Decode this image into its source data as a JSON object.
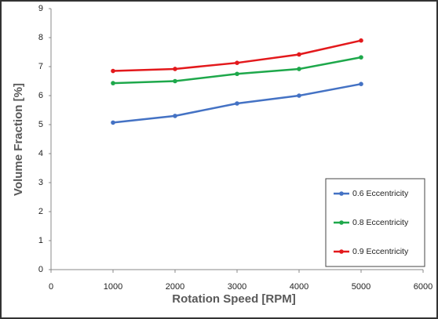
{
  "chart_data": {
    "type": "line",
    "x_label": "Rotation Speed [RPM]",
    "y_label": "Volume Fraction [%]",
    "x": [
      1000,
      2000,
      3000,
      4000,
      5000
    ],
    "series": [
      {
        "name": "0.6 Eccentricity",
        "color": "#4472c4",
        "values": [
          5.07,
          5.3,
          5.73,
          6.0,
          6.4
        ]
      },
      {
        "name": "0.8 Eccentricity",
        "color": "#1ea84b",
        "values": [
          6.43,
          6.5,
          6.75,
          6.92,
          7.32
        ]
      },
      {
        "name": "0.9 Eccentricity",
        "color": "#e3191c",
        "values": [
          6.85,
          6.92,
          7.13,
          7.42,
          7.9
        ]
      }
    ],
    "xlim": [
      0,
      6000
    ],
    "xticks": [
      0,
      1000,
      2000,
      3000,
      4000,
      5000,
      6000
    ],
    "ylim": [
      0,
      9
    ],
    "yticks": [
      0,
      1,
      2,
      3,
      4,
      5,
      6,
      7,
      8,
      9
    ],
    "grid": false,
    "legend": "lower right"
  }
}
